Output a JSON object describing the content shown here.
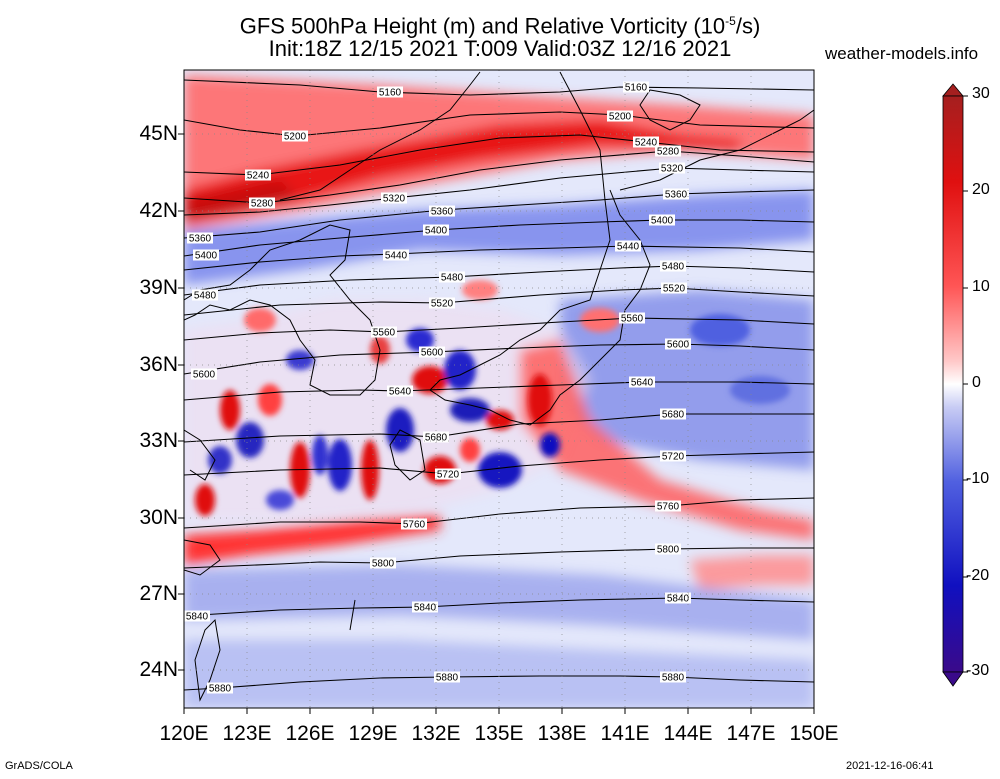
{
  "title_line1": "GFS 500hPa Height (m) and Relative Vorticity (10",
  "title_exp": "-5",
  "title_tail": "/s)",
  "title_line2": "Init:18Z 12/15 2021 T:009 Valid:03Z 12/16 2021",
  "site": "weather-models.info",
  "footer_left": "GrADS/COLA",
  "footer_right": "2021-12-16-06:41",
  "lat_labels": [
    "45N",
    "42N",
    "39N",
    "36N",
    "33N",
    "30N",
    "27N",
    "24N"
  ],
  "lon_labels": [
    "120E",
    "123E",
    "126E",
    "129E",
    "132E",
    "135E",
    "138E",
    "141E",
    "144E",
    "147E",
    "150E"
  ],
  "colorbar": {
    "labels": [
      "30",
      "20",
      "10",
      "0",
      "-10",
      "-20",
      "-30"
    ],
    "colors": [
      "#a51f1f",
      "#e01010",
      "#ff5555",
      "#ffb0b0",
      "#ffffff",
      "#b0b8f0",
      "#5060e0",
      "#1010c0",
      "#3a0a8a"
    ]
  },
  "contours": [
    {
      "value": "5160",
      "labels": [
        "5160",
        "5160"
      ]
    },
    {
      "value": "5200",
      "labels": [
        "5200",
        "5200"
      ]
    },
    {
      "value": "5240",
      "labels": [
        "5240",
        "5240"
      ]
    },
    {
      "value": "5280",
      "labels": [
        "5280",
        "5280"
      ]
    },
    {
      "value": "5320",
      "labels": [
        "5320",
        "5320"
      ]
    },
    {
      "value": "5360",
      "labels": [
        "5360",
        "5360",
        "5360"
      ]
    },
    {
      "value": "5400",
      "labels": [
        "5400",
        "5400",
        "5400"
      ]
    },
    {
      "value": "5440",
      "labels": [
        "5440",
        "5440"
      ]
    },
    {
      "value": "5480",
      "labels": [
        "5480",
        "5480",
        "5480"
      ]
    },
    {
      "value": "5520",
      "labels": [
        "5520",
        "5520"
      ]
    },
    {
      "value": "5560",
      "labels": [
        "5560",
        "5560"
      ]
    },
    {
      "value": "5600",
      "labels": [
        "5600",
        "5600",
        "5600"
      ]
    },
    {
      "value": "5640",
      "labels": [
        "5640",
        "5640"
      ]
    },
    {
      "value": "5680",
      "labels": [
        "5680",
        "5680"
      ]
    },
    {
      "value": "5720",
      "labels": [
        "5720",
        "5720"
      ]
    },
    {
      "value": "5760",
      "labels": [
        "5760",
        "5760"
      ]
    },
    {
      "value": "5800",
      "labels": [
        "5800",
        "5800"
      ]
    },
    {
      "value": "5840",
      "labels": [
        "5840",
        "5840",
        "5840"
      ]
    },
    {
      "value": "5880",
      "labels": [
        "5880",
        "5880",
        "5880"
      ]
    }
  ]
}
